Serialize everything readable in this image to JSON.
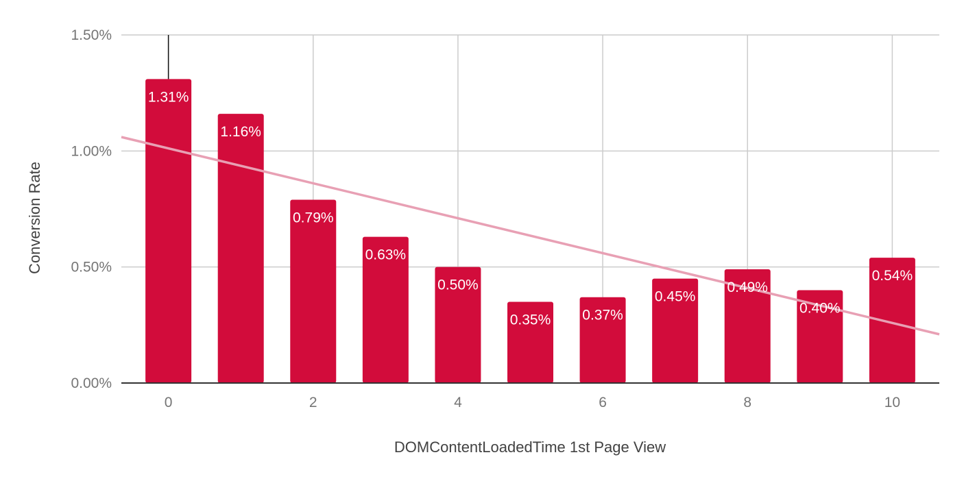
{
  "chart_data": {
    "type": "bar",
    "title": "",
    "xlabel": "DOMContentLoadedTime 1st Page View",
    "ylabel": "Conversion Rate",
    "categories": [
      0,
      1,
      2,
      3,
      4,
      5,
      6,
      7,
      8,
      9,
      10
    ],
    "x_tick_labels": [
      "0",
      "2",
      "4",
      "6",
      "8",
      "10"
    ],
    "x_tick_values": [
      0,
      2,
      4,
      6,
      8,
      10
    ],
    "xlim": [
      -0.65,
      10.65
    ],
    "values": [
      1.31,
      1.16,
      0.79,
      0.63,
      0.5,
      0.35,
      0.37,
      0.45,
      0.49,
      0.4,
      0.54
    ],
    "data_labels": [
      "1.31%",
      "1.16%",
      "0.79%",
      "0.63%",
      "0.50%",
      "0.35%",
      "0.37%",
      "0.45%",
      "0.49%",
      "0.40%",
      "0.54%"
    ],
    "ylim": [
      0,
      1.5
    ],
    "y_tick_values": [
      0,
      0.5,
      1.0,
      1.5
    ],
    "y_tick_labels": [
      "0.00%",
      "0.50%",
      "1.00%",
      "1.50%"
    ],
    "error_bar": {
      "category": 0,
      "upper": 1.5
    },
    "trendline": {
      "type": "linear",
      "x": [
        -0.65,
        10.65
      ],
      "y": [
        1.06,
        0.21
      ]
    },
    "grid": true,
    "legend": "none",
    "colors": {
      "bar": "#d20c3b",
      "trendline": "#e8a0b4",
      "grid": "#cccccc",
      "axis": "#333333",
      "label": "#ffffff"
    }
  }
}
